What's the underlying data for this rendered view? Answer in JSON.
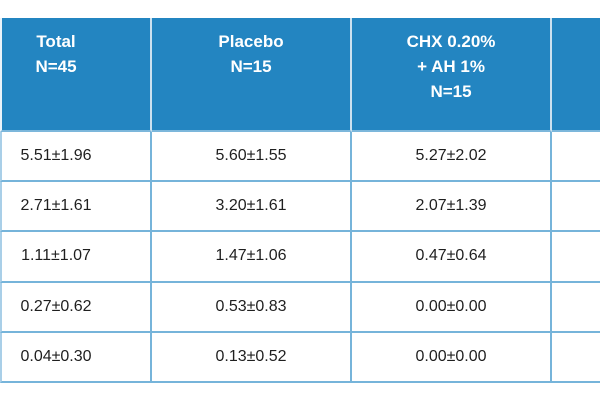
{
  "table": {
    "description": "Cropped results table from a clinical study comparing Placebo vs CHX 0.20% + AH 1%",
    "columns": [
      {
        "id": "total",
        "header": "Total\nN=45"
      },
      {
        "id": "placebo",
        "header": "Placebo\nN=15"
      },
      {
        "id": "chx",
        "header": "CHX 0.20%\n+ AH 1%\nN=15"
      },
      {
        "id": "cropped",
        "header": ""
      }
    ],
    "rows": [
      [
        "5.51±1.96",
        "5.60±1.55",
        "5.27±2.02"
      ],
      [
        "2.71±1.61",
        "3.20±1.61",
        "2.07±1.39"
      ],
      [
        "1.11±1.07",
        "1.47±1.06",
        "0.47±0.64"
      ],
      [
        "0.27±0.62",
        "0.53±0.83",
        "0.00±0.00"
      ],
      [
        "0.04±0.30",
        "0.13±0.52",
        "0.00±0.00"
      ]
    ],
    "colors": {
      "header_bg": "#2385c1",
      "header_text": "#ffffff",
      "header_divider": "#cbe1f0",
      "body_border": "#76b4da",
      "body_text": "#1f1f1f"
    }
  },
  "chart_data": {
    "type": "table",
    "title": "",
    "columns": [
      "Total N=45",
      "Placebo N=15",
      "CHX 0.20% + AH 1% N=15"
    ],
    "values": [
      {
        "Total": "5.51±1.96",
        "Placebo": "5.60±1.55",
        "CHX": "5.27±2.02"
      },
      {
        "Total": "2.71±1.61",
        "Placebo": "3.20±1.61",
        "CHX": "2.07±1.39"
      },
      {
        "Total": "1.11±1.07",
        "Placebo": "1.47±1.06",
        "CHX": "0.47±0.64"
      },
      {
        "Total": "0.27±0.62",
        "Placebo": "0.53±0.83",
        "CHX": "0.00±0.00"
      },
      {
        "Total": "0.04±0.30",
        "Placebo": "0.13±0.52",
        "CHX": "0.00±0.00"
      }
    ]
  }
}
